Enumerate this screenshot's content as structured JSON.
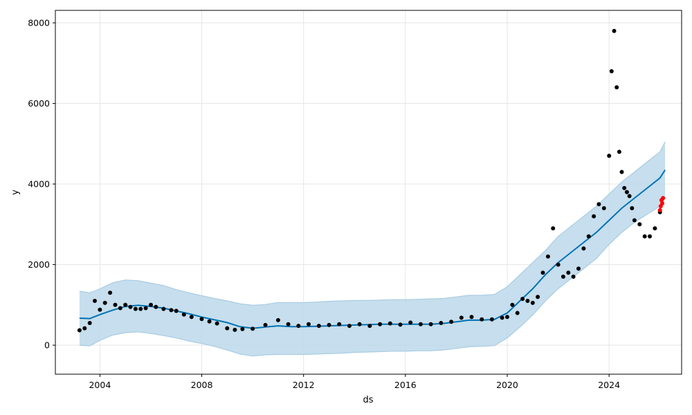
{
  "chart_data": {
    "type": "line",
    "title": "",
    "xlabel": "ds",
    "ylabel": "y",
    "xlim": [
      2002.25,
      2026.85
    ],
    "ylim": [
      -720,
      8310
    ],
    "grid": true,
    "x_ticks": [
      {
        "value": 2004,
        "label": "2004"
      },
      {
        "value": 2008,
        "label": "2008"
      },
      {
        "value": 2012,
        "label": "2012"
      },
      {
        "value": 2016,
        "label": "2016"
      },
      {
        "value": 2020,
        "label": "2020"
      },
      {
        "value": 2024,
        "label": "2024"
      }
    ],
    "y_ticks": [
      {
        "value": 0,
        "label": "0"
      },
      {
        "value": 2000,
        "label": "2000"
      },
      {
        "value": 4000,
        "label": "4000"
      },
      {
        "value": 6000,
        "label": "6000"
      },
      {
        "value": 8000,
        "label": "8000"
      }
    ],
    "colors": {
      "observed": "#000000",
      "recent": "#ff0000",
      "forecast": "#0072b2",
      "interval_fill": "#bcd8ea",
      "interval_edge": "#a9cce3",
      "grid": "#e6e6e6"
    },
    "forecast": {
      "x": [
        2003.2,
        2003.6,
        2004.0,
        2004.5,
        2005.0,
        2005.5,
        2006.0,
        2006.5,
        2007.0,
        2007.5,
        2008.0,
        2008.5,
        2009.0,
        2009.5,
        2010.0,
        2010.5,
        2011.0,
        2011.5,
        2012.0,
        2012.5,
        2013.0,
        2013.5,
        2014.0,
        2014.5,
        2015.0,
        2015.5,
        2016.0,
        2016.5,
        2017.0,
        2017.5,
        2018.0,
        2018.5,
        2019.0,
        2019.5,
        2020.0,
        2020.5,
        2021.0,
        2021.5,
        2022.0,
        2022.5,
        2023.0,
        2023.5,
        2024.0,
        2024.5,
        2025.0,
        2025.5,
        2026.0,
        2026.2
      ],
      "yhat": [
        670,
        660,
        760,
        870,
        960,
        990,
        960,
        920,
        850,
        780,
        700,
        630,
        560,
        460,
        420,
        450,
        480,
        460,
        460,
        470,
        480,
        490,
        500,
        510,
        520,
        520,
        520,
        520,
        520,
        540,
        580,
        620,
        620,
        640,
        800,
        1100,
        1400,
        1750,
        2050,
        2300,
        2550,
        2800,
        3100,
        3400,
        3650,
        3900,
        4150,
        4350
      ],
      "upper": [
        1340,
        1300,
        1400,
        1550,
        1620,
        1600,
        1540,
        1480,
        1380,
        1300,
        1230,
        1160,
        1100,
        1030,
        990,
        1010,
        1060,
        1060,
        1060,
        1070,
        1090,
        1100,
        1110,
        1110,
        1120,
        1130,
        1130,
        1140,
        1150,
        1160,
        1200,
        1240,
        1240,
        1260,
        1450,
        1750,
        2050,
        2350,
        2700,
        2950,
        3200,
        3450,
        3750,
        4050,
        4300,
        4550,
        4800,
        5050
      ],
      "lower": [
        0,
        -20,
        120,
        250,
        310,
        330,
        290,
        240,
        180,
        100,
        40,
        -30,
        -120,
        -220,
        -270,
        -240,
        -230,
        -230,
        -230,
        -220,
        -210,
        -200,
        -180,
        -170,
        -160,
        -150,
        -150,
        -140,
        -140,
        -120,
        -80,
        -40,
        -30,
        -10,
        180,
        450,
        750,
        1100,
        1400,
        1650,
        1900,
        2150,
        2500,
        2800,
        3050,
        3250,
        3450,
        3650
      ]
    },
    "observed": {
      "x": [
        2003.2,
        2003.4,
        2003.6,
        2003.8,
        2004.0,
        2004.2,
        2004.4,
        2004.6,
        2004.8,
        2005.0,
        2005.2,
        2005.4,
        2005.6,
        2005.8,
        2006.0,
        2006.2,
        2006.5,
        2006.8,
        2007.0,
        2007.3,
        2007.6,
        2008.0,
        2008.3,
        2008.6,
        2009.0,
        2009.3,
        2009.6,
        2010.0,
        2010.5,
        2011.0,
        2011.4,
        2011.8,
        2012.2,
        2012.6,
        2013.0,
        2013.4,
        2013.8,
        2014.2,
        2014.6,
        2015.0,
        2015.4,
        2015.8,
        2016.2,
        2016.6,
        2017.0,
        2017.4,
        2017.8,
        2018.2,
        2018.6,
        2019.0,
        2019.4,
        2019.8,
        2020.0,
        2020.2,
        2020.4,
        2020.6,
        2020.8,
        2021.0,
        2021.2,
        2021.4,
        2021.6,
        2021.8,
        2022.0,
        2022.2,
        2022.4,
        2022.6,
        2022.8,
        2023.0,
        2023.2,
        2023.4,
        2023.6,
        2023.8,
        2024.0,
        2024.1,
        2024.2,
        2024.3,
        2024.4,
        2024.5,
        2024.6,
        2024.7,
        2024.8,
        2024.9,
        2025.0,
        2025.2,
        2025.4,
        2025.6,
        2025.8,
        2026.0
      ],
      "y": [
        370,
        420,
        550,
        1100,
        880,
        1050,
        1300,
        1000,
        920,
        1000,
        950,
        900,
        900,
        920,
        1000,
        950,
        900,
        870,
        850,
        760,
        700,
        650,
        590,
        540,
        420,
        380,
        400,
        410,
        500,
        620,
        520,
        480,
        520,
        480,
        500,
        520,
        480,
        520,
        480,
        520,
        540,
        510,
        560,
        520,
        520,
        550,
        580,
        680,
        700,
        640,
        640,
        680,
        700,
        1000,
        800,
        1150,
        1100,
        1050,
        1200,
        1800,
        2200,
        2900,
        2000,
        1700,
        1800,
        1700,
        1900,
        2400,
        2700,
        3200,
        3500,
        3400,
        4700,
        6800,
        7800,
        6400,
        4800,
        4300,
        3900,
        3800,
        3700,
        3400,
        3100,
        3000,
        2700,
        2700,
        2900,
        3300
      ],
      "recent_x": [
        2026.0,
        2026.03,
        2026.06,
        2026.09,
        2026.12
      ],
      "recent_y": [
        3350,
        3450,
        3600,
        3520,
        3650
      ]
    }
  }
}
